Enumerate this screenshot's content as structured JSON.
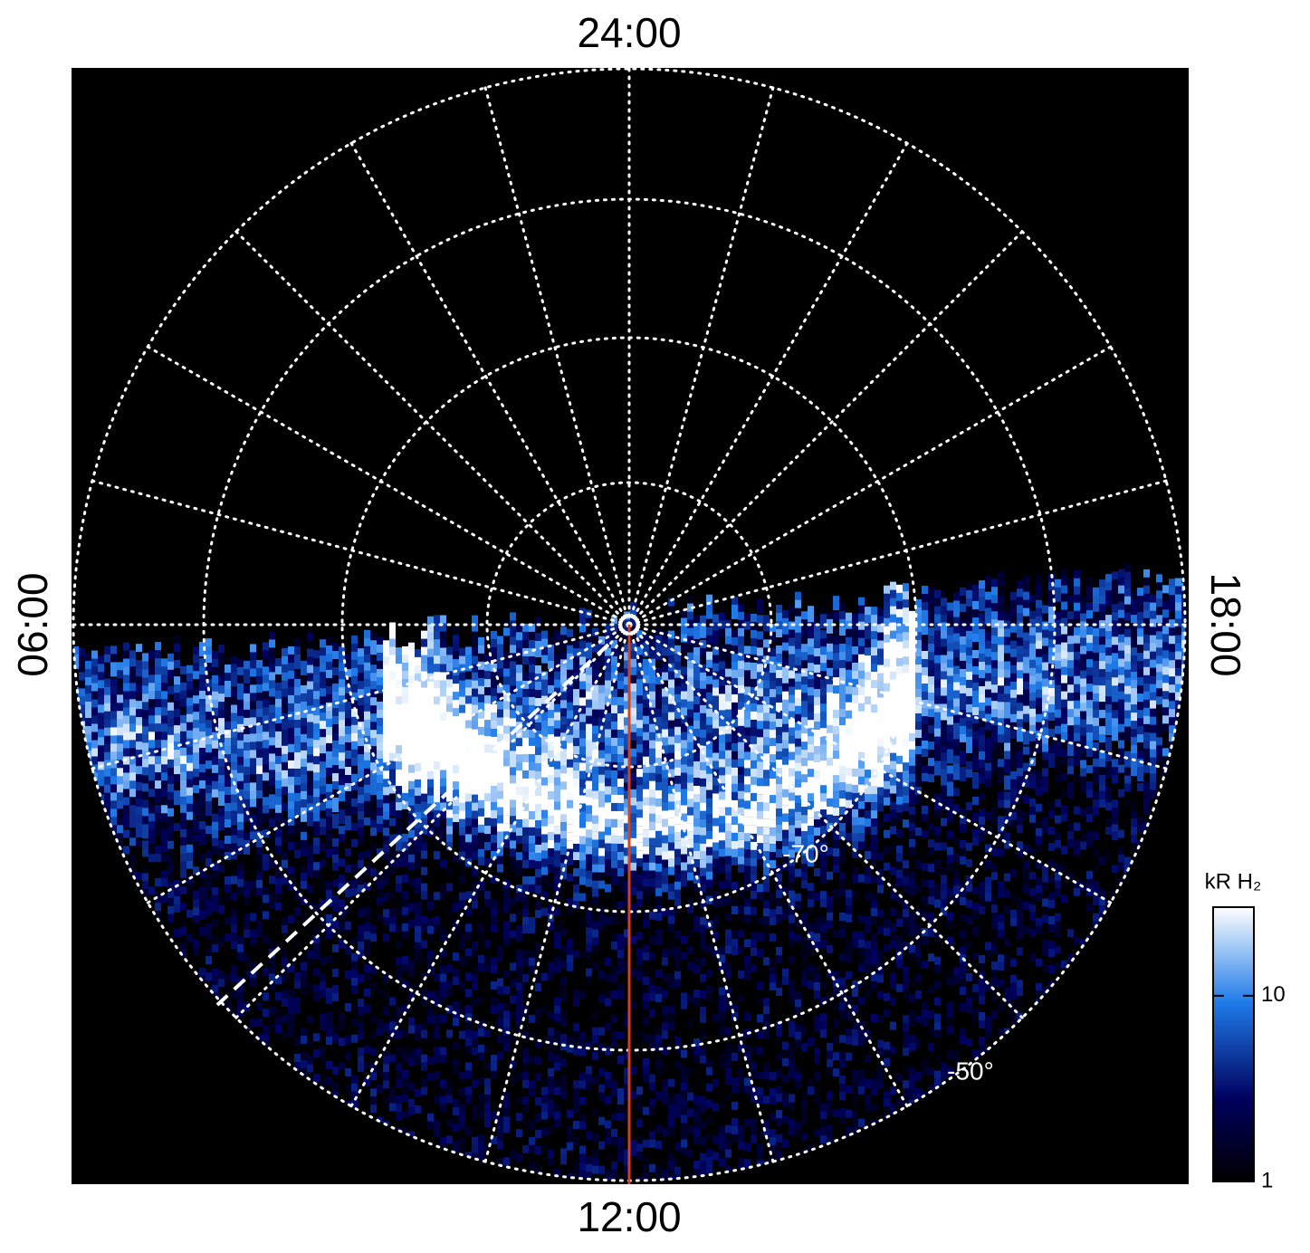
{
  "labels": {
    "top": "24:00",
    "bottom": "12:00",
    "left": "06:00",
    "right": "18:00"
  },
  "latitude_labels": [
    "-70°",
    "-50°"
  ],
  "colorbar": {
    "label": "kR H₂",
    "log_scale": true,
    "range": [
      1,
      30
    ],
    "ticks": [
      1,
      10
    ]
  }
}
